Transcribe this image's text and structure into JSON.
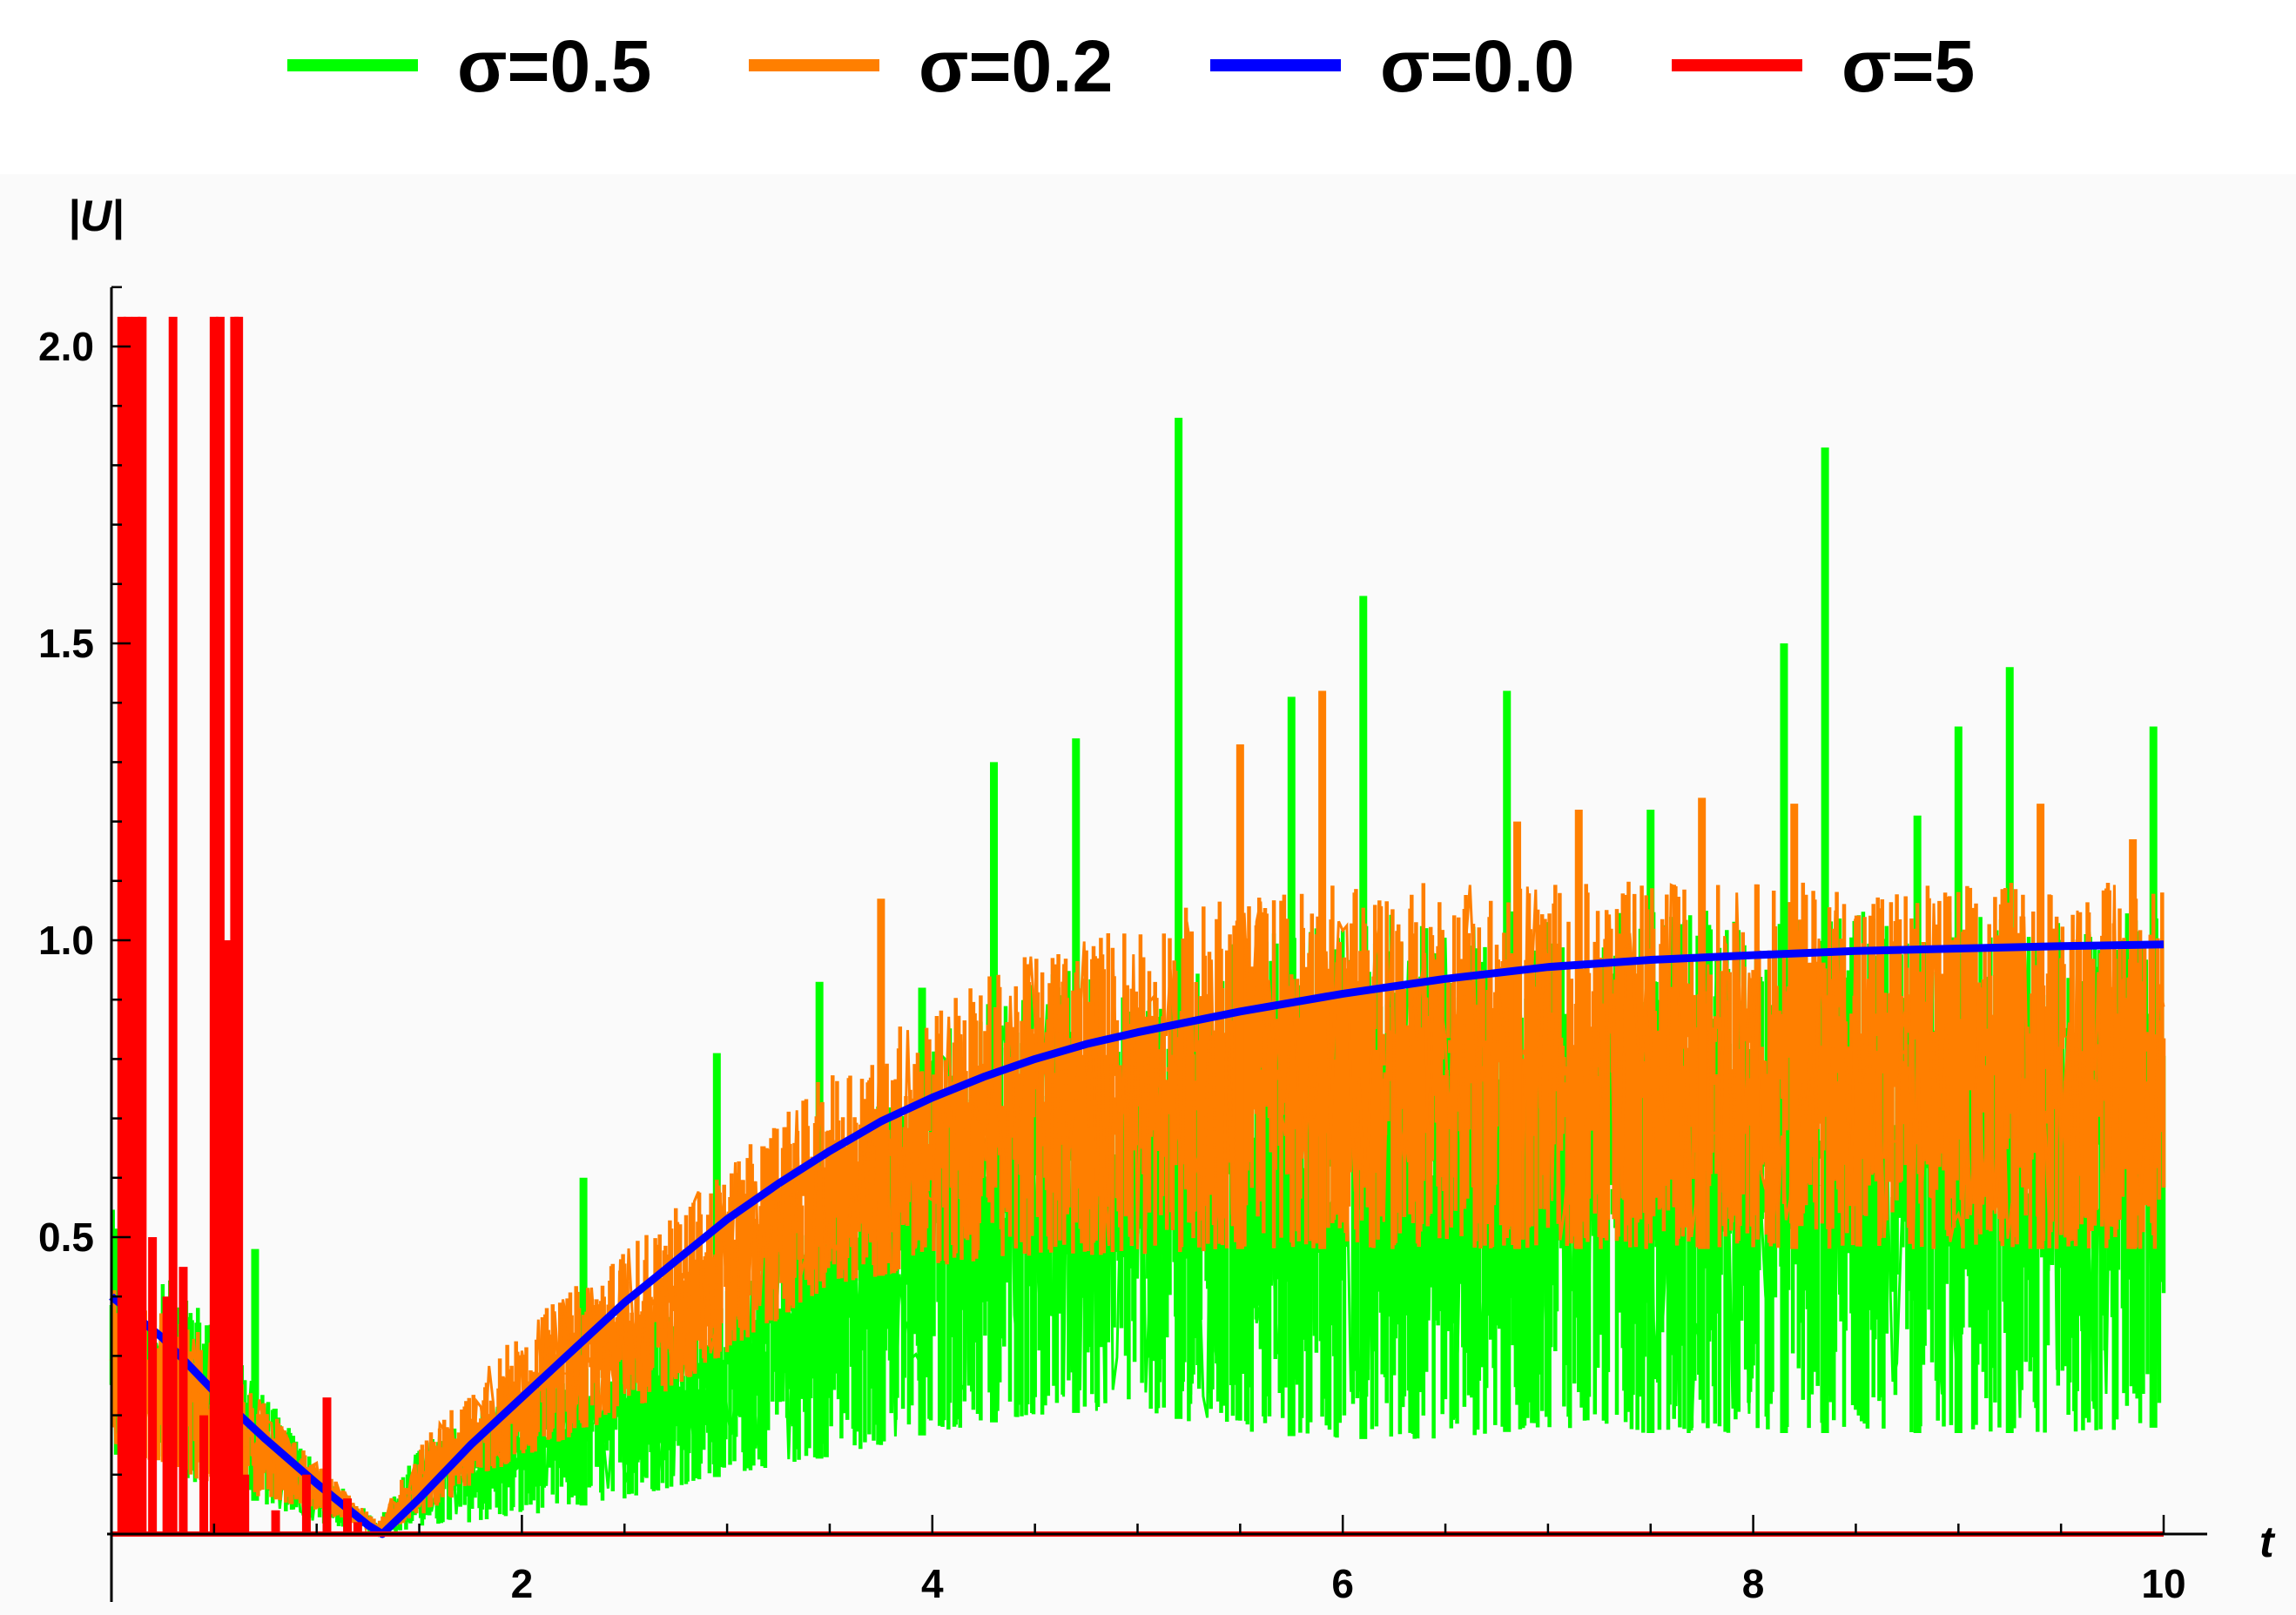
{
  "chart_data": {
    "type": "line",
    "xlabel": "t",
    "ylabel": "|U|",
    "xlim": [
      0,
      10.2
    ],
    "ylim": [
      0,
      2.15
    ],
    "plot_ylim": [
      -0.1,
      2.15
    ],
    "x_ticks": [
      {
        "value": 2,
        "label": "2"
      },
      {
        "value": 4,
        "label": "4"
      },
      {
        "value": 6,
        "label": "6"
      },
      {
        "value": 8,
        "label": "8"
      },
      {
        "value": 10,
        "label": "10"
      }
    ],
    "y_ticks": [
      {
        "value": 0.5,
        "label": "0.5"
      },
      {
        "value": 1.0,
        "label": "1.0"
      },
      {
        "value": 1.5,
        "label": "1.5"
      },
      {
        "value": 2.0,
        "label": "2.0"
      }
    ],
    "x_minor_step": 0.5,
    "y_minor_step": 0.1,
    "legend_position": "top",
    "grid": false,
    "series": [
      {
        "name": "σ=0.5",
        "color": "#00ff00",
        "style": "noisy band",
        "x": [
          0,
          0.5,
          1.0,
          1.3,
          1.5,
          2.0,
          2.5,
          3.0,
          3.5,
          4.0,
          4.5,
          5.0,
          5.5,
          6.0,
          6.5,
          7.0,
          7.5,
          8.0,
          8.5,
          9.0,
          9.5,
          10.0
        ],
        "lower": [
          0.12,
          0.08,
          0.02,
          0.0,
          0.01,
          0.03,
          0.06,
          0.1,
          0.13,
          0.17,
          0.2,
          0.21,
          0.17,
          0.16,
          0.16,
          0.18,
          0.17,
          0.17,
          0.17,
          0.17,
          0.17,
          0.18
        ],
        "upper": [
          0.55,
          0.35,
          0.12,
          0.02,
          0.15,
          0.25,
          0.35,
          0.45,
          0.65,
          0.85,
          0.95,
          0.95,
          1.0,
          1.05,
          1.05,
          1.05,
          1.05,
          1.05,
          1.05,
          1.05,
          1.05,
          1.05
        ],
        "spikes": [
          {
            "x": 0.1,
            "y": 0.68
          },
          {
            "x": 0.7,
            "y": 0.48
          },
          {
            "x": 2.3,
            "y": 0.6
          },
          {
            "x": 2.95,
            "y": 0.81
          },
          {
            "x": 3.45,
            "y": 0.93
          },
          {
            "x": 3.95,
            "y": 0.92
          },
          {
            "x": 4.3,
            "y": 1.3
          },
          {
            "x": 4.7,
            "y": 1.34
          },
          {
            "x": 5.2,
            "y": 1.88
          },
          {
            "x": 5.75,
            "y": 1.41
          },
          {
            "x": 6.1,
            "y": 1.58
          },
          {
            "x": 6.8,
            "y": 1.42
          },
          {
            "x": 7.5,
            "y": 1.22
          },
          {
            "x": 8.15,
            "y": 1.5
          },
          {
            "x": 8.35,
            "y": 1.83
          },
          {
            "x": 8.8,
            "y": 1.21
          },
          {
            "x": 9.0,
            "y": 1.36
          },
          {
            "x": 9.25,
            "y": 1.46
          },
          {
            "x": 9.95,
            "y": 1.36
          }
        ]
      },
      {
        "name": "σ=0.2",
        "color": "#ff7f00",
        "style": "noisy band",
        "x": [
          0,
          0.5,
          1.0,
          1.3,
          1.5,
          2.0,
          2.5,
          3.0,
          3.5,
          4.0,
          4.5,
          5.0,
          5.5,
          6.0,
          6.5,
          7.0,
          7.5,
          8.0,
          8.5,
          9.0,
          9.5,
          10.0
        ],
        "lower": [
          0.15,
          0.08,
          0.04,
          0.0,
          0.03,
          0.13,
          0.2,
          0.3,
          0.42,
          0.45,
          0.47,
          0.47,
          0.48,
          0.48,
          0.48,
          0.48,
          0.48,
          0.48,
          0.48,
          0.48,
          0.48,
          0.48
        ],
        "upper": [
          0.45,
          0.32,
          0.12,
          0.02,
          0.15,
          0.35,
          0.48,
          0.62,
          0.78,
          0.9,
          0.98,
          1.04,
          1.08,
          1.1,
          1.1,
          1.1,
          1.1,
          1.1,
          1.1,
          1.1,
          1.1,
          1.1
        ],
        "spikes": [
          {
            "x": 3.75,
            "y": 1.07
          },
          {
            "x": 5.5,
            "y": 1.33
          },
          {
            "x": 5.9,
            "y": 1.42
          },
          {
            "x": 6.85,
            "y": 1.2
          },
          {
            "x": 7.15,
            "y": 1.22
          },
          {
            "x": 7.75,
            "y": 1.24
          },
          {
            "x": 8.2,
            "y": 1.23
          },
          {
            "x": 9.4,
            "y": 1.23
          },
          {
            "x": 9.85,
            "y": 1.17
          }
        ]
      },
      {
        "name": "σ=0.0",
        "color": "#0000ff",
        "style": "smooth line",
        "x": [
          0,
          0.25,
          0.5,
          0.75,
          1.0,
          1.25,
          1.32,
          1.5,
          1.75,
          2.0,
          2.25,
          2.5,
          2.75,
          3.0,
          3.25,
          3.5,
          3.75,
          4.0,
          4.25,
          4.5,
          4.75,
          5.0,
          5.5,
          6.0,
          6.5,
          7.0,
          7.5,
          8.0,
          8.5,
          9.0,
          9.5,
          10.0
        ],
        "y": [
          0.4,
          0.33,
          0.24,
          0.16,
          0.085,
          0.015,
          0.0,
          0.06,
          0.15,
          0.23,
          0.31,
          0.39,
          0.46,
          0.53,
          0.59,
          0.645,
          0.695,
          0.735,
          0.77,
          0.8,
          0.825,
          0.845,
          0.88,
          0.91,
          0.935,
          0.955,
          0.967,
          0.975,
          0.982,
          0.986,
          0.99,
          0.993
        ]
      },
      {
        "name": "σ=5",
        "color": "#ff0000",
        "style": "spikes",
        "x": [
          0,
          1.0,
          2.0,
          3.0,
          4.0,
          5.0,
          6.0,
          7.0,
          8.0,
          9.0,
          10.0
        ],
        "y": [
          0.0,
          0.0,
          0.0,
          0.0,
          0.0,
          0.0,
          0.0,
          0.0,
          0.0,
          0.0,
          0.0
        ],
        "spikes": [
          {
            "x": 0.05,
            "y": 2.05
          },
          {
            "x": 0.08,
            "y": 2.05
          },
          {
            "x": 0.12,
            "y": 2.05
          },
          {
            "x": 0.15,
            "y": 2.05
          },
          {
            "x": 0.2,
            "y": 0.5
          },
          {
            "x": 0.27,
            "y": 0.4
          },
          {
            "x": 0.3,
            "y": 2.05
          },
          {
            "x": 0.35,
            "y": 0.45
          },
          {
            "x": 0.45,
            "y": 0.2
          },
          {
            "x": 0.5,
            "y": 2.05
          },
          {
            "x": 0.53,
            "y": 2.05
          },
          {
            "x": 0.57,
            "y": 1.0
          },
          {
            "x": 0.6,
            "y": 2.05
          },
          {
            "x": 0.62,
            "y": 2.05
          },
          {
            "x": 0.65,
            "y": 0.1
          },
          {
            "x": 0.8,
            "y": 0.04
          },
          {
            "x": 0.95,
            "y": 0.1
          },
          {
            "x": 1.05,
            "y": 0.23
          },
          {
            "x": 1.15,
            "y": 0.06
          },
          {
            "x": 1.2,
            "y": 0.02
          }
        ]
      }
    ]
  }
}
